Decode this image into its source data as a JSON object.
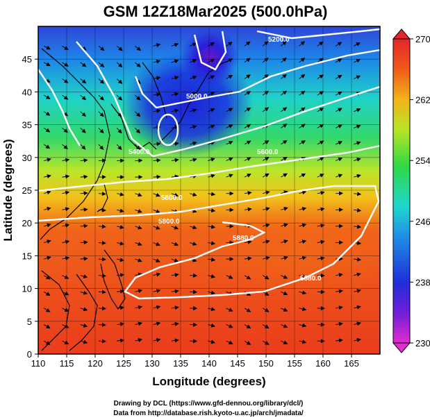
{
  "figure": {
    "title": "GSM 12Z18Mar2025 (500.0hPa)",
    "xlabel": "Longitude (degrees)",
    "ylabel": "Latitude  (degrees)",
    "credit_line1": "Drawing by DCL (https://www.gfd-dennou.org/library/dcl/)",
    "credit_line2": "Data from http://database.rish.kyoto-u.ac.jp/arch/jmadata/"
  },
  "chart_data": {
    "type": "heatmap",
    "title": "GSM 12Z18Mar2025 (500.0hPa)",
    "xlabel": "Longitude (degrees)",
    "ylabel": "Latitude  (degrees)",
    "xlim": [
      110,
      170
    ],
    "ylim": [
      0,
      50
    ],
    "x_ticks": [
      110,
      115,
      120,
      125,
      130,
      135,
      140,
      145,
      150,
      155,
      160,
      165
    ],
    "y_ticks": [
      0,
      5,
      10,
      15,
      20,
      25,
      30,
      35,
      40,
      45
    ],
    "colorbar": {
      "range": [
        230,
        270
      ],
      "tick_values": [
        230,
        238,
        246,
        254,
        262,
        270
      ],
      "tick_labels": [
        "230",
        "238",
        "246",
        "254",
        "262",
        "270"
      ]
    },
    "contour_labels": [
      "5200.0",
      "5000.0",
      "5400.0",
      "5600.0",
      "5800.0",
      "5800.0",
      "5880.0",
      "5880.0"
    ],
    "overlays": [
      "temperature shading",
      "geopotential height contours",
      "wind streamlines",
      "coastlines",
      "grid"
    ]
  }
}
